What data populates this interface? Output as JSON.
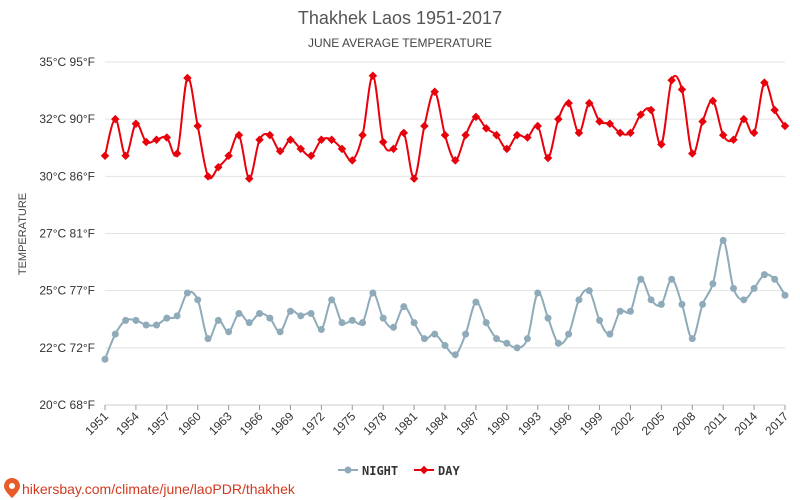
{
  "footer_text": "hikersbay.com/climate/june/laoPDR/thakhek",
  "chart_data": {
    "type": "line",
    "title": "Thakhek Laos 1951-2017",
    "subtitle": "JUNE AVERAGE TEMPERATURE",
    "ylabel": "TEMPERATURE",
    "xlabel": "",
    "ylim": [
      20,
      35
    ],
    "yticks": [
      20,
      22.5,
      25,
      27.5,
      30,
      32.5,
      35
    ],
    "ytick_labels": [
      "20°C 68°F",
      "22°C 72°F",
      "25°C 77°F",
      "27°C 81°F",
      "30°C 86°F",
      "32°C 90°F",
      "35°C 95°F"
    ],
    "xlim": [
      1951,
      2017
    ],
    "xticks": [
      "1951",
      "1954",
      "1957",
      "1960",
      "1963",
      "1966",
      "1969",
      "1972",
      "1975",
      "1978",
      "1981",
      "1984",
      "1987",
      "1990",
      "1993",
      "1996",
      "1999",
      "2002",
      "2005",
      "2008",
      "2011",
      "2014",
      "2017"
    ],
    "grid": true,
    "legend_position": "bottom-center",
    "x": [
      1951,
      1952,
      1953,
      1954,
      1955,
      1956,
      1957,
      1958,
      1959,
      1960,
      1961,
      1962,
      1963,
      1964,
      1965,
      1966,
      1967,
      1968,
      1969,
      1970,
      1971,
      1972,
      1973,
      1974,
      1975,
      1976,
      1977,
      1978,
      1979,
      1980,
      1981,
      1982,
      1983,
      1984,
      1985,
      1986,
      1987,
      1988,
      1989,
      1990,
      1991,
      1992,
      1993,
      1994,
      1995,
      1996,
      1997,
      1998,
      1999,
      2000,
      2001,
      2002,
      2003,
      2004,
      2005,
      2006,
      2007,
      2008,
      2009,
      2010,
      2011,
      2012,
      2013,
      2014,
      2015,
      2016,
      2017
    ],
    "series": [
      {
        "name": "NIGHT",
        "color": "#8fabb9",
        "marker": "circle",
        "values": [
          22.0,
          23.1,
          23.7,
          23.7,
          23.5,
          23.5,
          23.8,
          23.9,
          24.9,
          24.6,
          22.9,
          23.7,
          23.2,
          24.0,
          23.6,
          24.0,
          23.8,
          23.2,
          24.1,
          23.9,
          24.0,
          23.3,
          24.6,
          23.6,
          23.7,
          23.6,
          24.9,
          23.8,
          23.4,
          24.3,
          23.6,
          22.9,
          23.1,
          22.6,
          22.2,
          23.1,
          24.5,
          23.6,
          22.9,
          22.7,
          22.5,
          22.9,
          24.9,
          23.8,
          22.7,
          23.1,
          24.6,
          25.0,
          23.7,
          23.1,
          24.1,
          24.1,
          25.5,
          24.6,
          24.4,
          25.5,
          24.4,
          22.9,
          24.4,
          25.3,
          27.2,
          25.1,
          24.6,
          25.1,
          25.7,
          25.5,
          24.8
        ]
      },
      {
        "name": "DAY",
        "color": "#e8000b",
        "marker": "diamond",
        "values": [
          30.9,
          32.5,
          30.9,
          32.3,
          31.5,
          31.6,
          31.7,
          31.0,
          34.3,
          32.2,
          30.0,
          30.4,
          30.9,
          31.8,
          29.9,
          31.6,
          31.8,
          31.1,
          31.6,
          31.2,
          30.9,
          31.6,
          31.6,
          31.2,
          30.7,
          31.8,
          34.4,
          31.5,
          31.2,
          31.9,
          29.9,
          32.2,
          33.7,
          31.8,
          30.7,
          31.8,
          32.6,
          32.1,
          31.8,
          31.2,
          31.8,
          31.7,
          32.2,
          30.8,
          32.5,
          33.2,
          31.9,
          33.2,
          32.4,
          32.3,
          31.9,
          31.9,
          32.7,
          32.9,
          31.4,
          34.2,
          33.8,
          31.0,
          32.4,
          33.3,
          31.8,
          31.6,
          32.5,
          31.9,
          34.1,
          32.9,
          32.2
        ]
      }
    ]
  }
}
